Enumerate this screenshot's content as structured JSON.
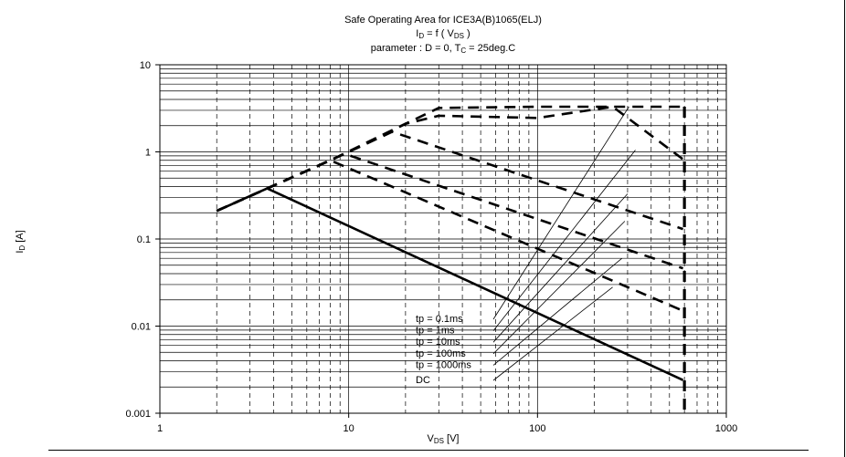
{
  "chart_data": {
    "type": "line",
    "title": "Safe Operating Area for ICE3A(B)1065(ELJ)",
    "subtitle_main": "I",
    "subtitle_main_sub": "D",
    "subtitle_mid": " = f ( V",
    "subtitle_mid_sub": "DS",
    "subtitle_end": " )",
    "param_main": "parameter : D = 0, T",
    "param_sub": "C",
    "param_end": " = 25deg.C",
    "xlabel_main": "V",
    "xlabel_sub": "DS",
    "xlabel_unit": " [V]",
    "ylabel_main": "I",
    "ylabel_sub": "D",
    "ylabel_unit": " [A]",
    "x_scale": "log",
    "y_scale": "log",
    "xlim": [
      1,
      1000
    ],
    "ylim": [
      0.001,
      10
    ],
    "x_ticks": [
      1,
      10,
      100,
      1000
    ],
    "x_tick_labels": [
      "1",
      "10",
      "100",
      "1000"
    ],
    "y_ticks": [
      0.001,
      0.01,
      0.1,
      1,
      10
    ],
    "y_tick_labels": [
      "0.001",
      "0.01",
      "0.1",
      "1",
      "10"
    ],
    "grid": true,
    "series": [
      {
        "name": "tp = 0.1ms",
        "style": "dashed",
        "weight": "heavy",
        "points": [
          [
            2,
            0.21
          ],
          [
            3.7,
            0.38
          ],
          [
            8,
            0.8
          ],
          [
            20,
            2.1
          ],
          [
            30,
            3.2
          ],
          [
            100,
            3.3
          ],
          [
            300,
            3.3
          ],
          [
            600,
            3.3
          ]
        ]
      },
      {
        "name": "tp = 1ms",
        "style": "dashed",
        "weight": "heavy",
        "points": [
          [
            2,
            0.21
          ],
          [
            3.7,
            0.38
          ],
          [
            8,
            0.8
          ],
          [
            20,
            2.1
          ],
          [
            30,
            2.6
          ],
          [
            100,
            2.45
          ],
          [
            250,
            3.3
          ],
          [
            600,
            0.8
          ]
        ]
      },
      {
        "name": "tp = 10ms",
        "style": "dashed",
        "weight": "heavy",
        "points": [
          [
            2,
            0.21
          ],
          [
            3.7,
            0.38
          ],
          [
            8,
            0.8
          ],
          [
            17,
            1.7
          ],
          [
            590,
            0.13
          ]
        ]
      },
      {
        "name": "tp = 100ms",
        "style": "dashed",
        "weight": "heavy",
        "points": [
          [
            2,
            0.21
          ],
          [
            3.7,
            0.38
          ],
          [
            9.5,
            0.95
          ],
          [
            590,
            0.046
          ]
        ]
      },
      {
        "name": "tp = 1000ms",
        "style": "dashed",
        "weight": "heavy",
        "points": [
          [
            2,
            0.21
          ],
          [
            3.7,
            0.38
          ],
          [
            8,
            0.8
          ],
          [
            590,
            0.015
          ]
        ]
      },
      {
        "name": "DC",
        "style": "solid",
        "weight": "heavy",
        "points": [
          [
            2,
            0.21
          ],
          [
            3.7,
            0.38
          ],
          [
            590,
            0.0024
          ]
        ]
      }
    ],
    "vmax_line": {
      "x": 600,
      "style": "dashed",
      "weight": "heavy"
    },
    "legend_labels": [
      "tp = 0.1ms",
      "tp = 1ms",
      "tp = 10ms",
      "tp = 100ms",
      "tp = 1000ms",
      "DC"
    ],
    "leader_targets": [
      [
        305,
        3.3
      ],
      [
        330,
        1.05
      ],
      [
        300,
        0.33
      ],
      [
        290,
        0.16
      ],
      [
        280,
        0.06
      ],
      [
        250,
        0.028
      ]
    ]
  }
}
